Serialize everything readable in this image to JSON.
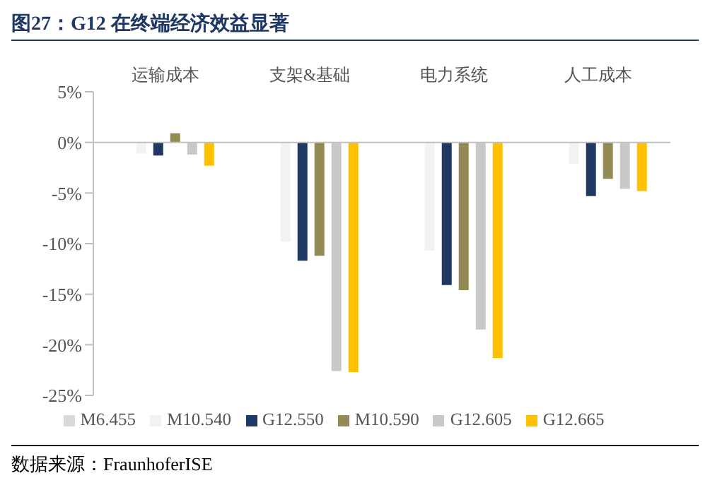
{
  "chart_data": {
    "type": "bar",
    "title": "图27：G12 在终端经济效益显著",
    "categories": [
      "运输成本",
      "支架&基础",
      "电力系统",
      "人工成本"
    ],
    "series": [
      {
        "name": "M6.455",
        "color": "#d9d9d9",
        "values": [
          0,
          0,
          0,
          0
        ]
      },
      {
        "name": "M10.540",
        "color": "#f2f2f2",
        "values": [
          -1.1,
          -9.8,
          -10.7,
          -2.1
        ]
      },
      {
        "name": "G12.550",
        "color": "#1f3864",
        "values": [
          -1.3,
          -11.7,
          -14.1,
          -5.3
        ]
      },
      {
        "name": "M10.590",
        "color": "#948a54",
        "values": [
          0.9,
          -11.2,
          -14.6,
          -3.6
        ]
      },
      {
        "name": "G12.605",
        "color": "#c9c9c9",
        "values": [
          -1.2,
          -22.6,
          -18.5,
          -4.6
        ]
      },
      {
        "name": "G12.665",
        "color": "#ffc000",
        "values": [
          -2.3,
          -22.7,
          -21.3,
          -4.8
        ]
      }
    ],
    "ylim": [
      -25,
      5
    ],
    "yticks": [
      {
        "value": 5,
        "label": "5%"
      },
      {
        "value": 0,
        "label": "0%"
      },
      {
        "value": -5,
        "label": "-5%"
      },
      {
        "value": -10,
        "label": "-10%"
      },
      {
        "value": -15,
        "label": "-15%"
      },
      {
        "value": -20,
        "label": "-20%"
      },
      {
        "value": -25,
        "label": "-25%"
      }
    ],
    "legend": "bottom",
    "annotations": [
      "数据来源：FraunhoferISE"
    ]
  }
}
